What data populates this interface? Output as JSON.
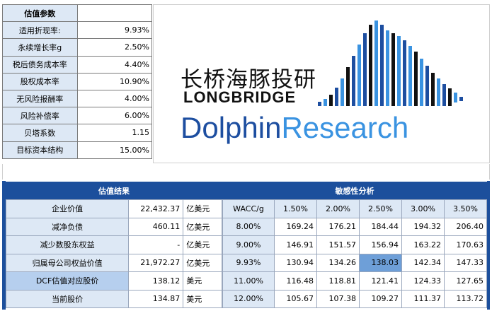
{
  "params": {
    "title": "估值参数",
    "rows": [
      {
        "label": "适用折现率:",
        "value": "9.93%"
      },
      {
        "label": "永续增长率g",
        "value": "2.50%"
      },
      {
        "label": "税后债务成本率",
        "value": "4.40%"
      },
      {
        "label": "股权成本率",
        "value": "10.90%"
      },
      {
        "label": "无风险报酬率",
        "value": "4.00%"
      },
      {
        "label": "风险补偿率",
        "value": "6.00%"
      },
      {
        "label": "贝塔系数",
        "value": "1.15"
      },
      {
        "label": "目标资本结构",
        "value": "15.00%"
      }
    ]
  },
  "logo": {
    "cn": "长桥海豚投研",
    "en": "LONGBRIDGE",
    "brand_part1": "Dolphin",
    "brand_part2": "Research",
    "colors": {
      "dark": "#1d4ea0",
      "light": "#3a93e1",
      "black": "#111111"
    }
  },
  "valuation": {
    "title": "估值结果",
    "rows": [
      {
        "label": "企业价值",
        "value": "22,432.37",
        "unit": "亿美元"
      },
      {
        "label": "减净负债",
        "value": "460.11",
        "unit": "亿美元"
      },
      {
        "label": "减少数股东权益",
        "value": "-",
        "unit": "亿美元"
      },
      {
        "label": "归属母公司权益价值",
        "value": "21,972.27",
        "unit": "亿美元"
      },
      {
        "label": "DCF估值对应股价",
        "value": "138.12",
        "unit": "美元"
      },
      {
        "label": "当前股价",
        "value": "134.87",
        "unit": "美元"
      }
    ]
  },
  "sensitivity": {
    "title": "敏感性分析",
    "corner": "WACC/g",
    "g_values": [
      "1.50%",
      "2.00%",
      "2.50%",
      "3.00%",
      "3.50%"
    ],
    "rows": [
      {
        "wacc": "8.00%",
        "values": [
          "169.24",
          "176.21",
          "184.44",
          "194.32",
          "206.40"
        ]
      },
      {
        "wacc": "9.00%",
        "values": [
          "146.91",
          "151.57",
          "156.94",
          "163.22",
          "170.63"
        ]
      },
      {
        "wacc": "9.93%",
        "values": [
          "130.94",
          "134.26",
          "138.03",
          "142.34",
          "147.33"
        ]
      },
      {
        "wacc": "11.00%",
        "values": [
          "116.48",
          "118.81",
          "121.41",
          "124.33",
          "127.65"
        ]
      },
      {
        "wacc": "12.00%",
        "values": [
          "105.67",
          "107.38",
          "109.27",
          "111.37",
          "113.72"
        ]
      }
    ]
  }
}
